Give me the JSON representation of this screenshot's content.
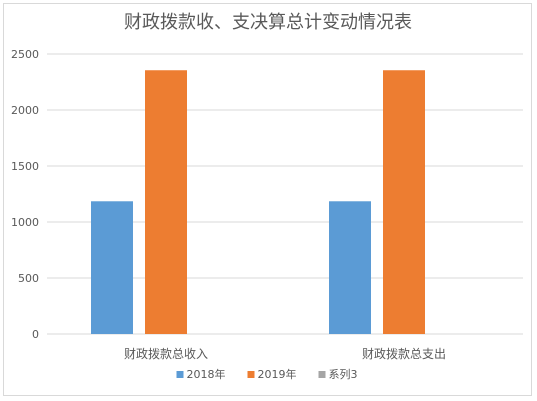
{
  "chart_data": {
    "type": "bar",
    "title": "财政拨款收、支决算总计变动情况表",
    "categories": [
      "财政拨款总收入",
      "财政拨款总支出"
    ],
    "series": [
      {
        "name": "2018年",
        "values": [
          1185,
          1185
        ],
        "color": "#5b9bd5"
      },
      {
        "name": "2019年",
        "values": [
          2355,
          2355
        ],
        "color": "#ed7d31"
      },
      {
        "name": "系列3",
        "values": [
          null,
          null
        ],
        "color": "#a5a5a5"
      }
    ],
    "ylim": [
      0,
      2500
    ],
    "yticks": [
      0,
      500,
      1000,
      1500,
      2000,
      2500
    ],
    "grid": true,
    "legend": "bottom"
  }
}
